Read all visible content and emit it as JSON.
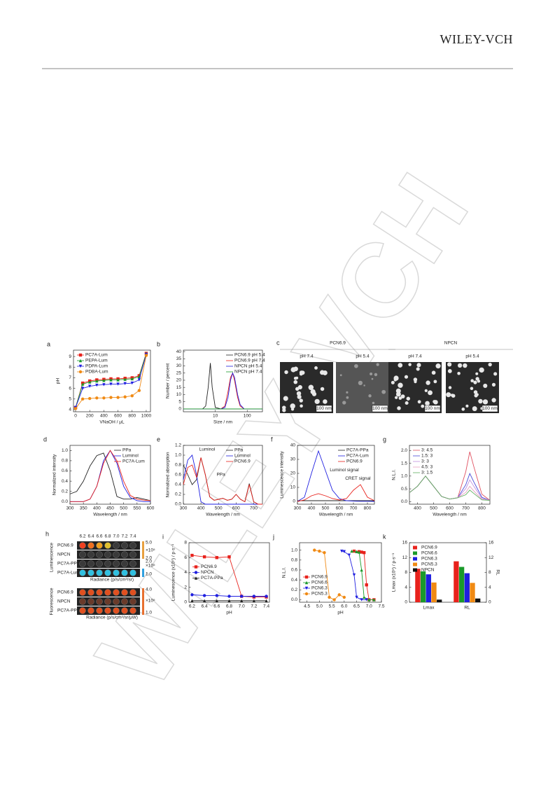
{
  "header": {
    "publisher": "WILEY-VCH"
  },
  "watermark": "WILEY-VCH",
  "micrographs": {
    "label": "c",
    "groups": [
      "PCN6.9",
      "NPCN"
    ],
    "conditions": [
      "pH 7.4",
      "pH 5.4",
      "pH 7.4",
      "pH 5.4"
    ],
    "scale_bars": [
      "100 nm",
      "100 nm",
      "100 nm",
      "100 nm"
    ]
  },
  "imaging": {
    "label": "h",
    "columns": [
      "6.2",
      "6.4",
      "6.6",
      "6.8",
      "7.0",
      "7.2",
      "7.4"
    ],
    "sections": [
      "Luminescence",
      "Fluorescence"
    ],
    "lum_rows": [
      "PCN6.9",
      "NPCN",
      "PC7A-PPa",
      "PC7A-Lum"
    ],
    "fl_rows": [
      "PCN6.9",
      "NPCN",
      "PC7A-PPa"
    ],
    "lum_scales": [
      "5.0",
      "×10⁵",
      "2.0",
      "2.0",
      "×10⁵",
      "1.0"
    ],
    "fl_scale": [
      "4.0",
      "×10⁵",
      "1.0"
    ],
    "lum_radiance": "Radiance (p/s/cm²/sr)",
    "fl_radiance": "Radiance (p/s/cm²/sr/μW)"
  },
  "chart_data": [
    {
      "label": "a",
      "type": "line",
      "markers": true,
      "xlabel": "VNaOH / μL",
      "ylabel": "pH",
      "legend": "upper left",
      "x": [
        0,
        100,
        200,
        300,
        400,
        500,
        600,
        700,
        800,
        900,
        1000
      ],
      "xlim": [
        -30,
        1060
      ],
      "xticks": [
        0,
        200,
        400,
        600,
        800,
        1000
      ],
      "ylim": [
        3.8,
        9.6
      ],
      "yticks": [
        4,
        5,
        6,
        7,
        8,
        9
      ],
      "series": [
        {
          "name": "PC7A-Lum",
          "color": "#e8221c",
          "marker": "square",
          "values": [
            4.2,
            6.5,
            6.7,
            6.8,
            6.85,
            6.9,
            6.9,
            6.95,
            7.0,
            7.2,
            9.3
          ]
        },
        {
          "name": "PEPA-Lum",
          "color": "#1a9a2a",
          "marker": "triangle",
          "values": [
            4.2,
            6.4,
            6.6,
            6.7,
            6.75,
            6.8,
            6.8,
            6.85,
            6.9,
            7.1,
            9.3
          ]
        },
        {
          "name": "PDPA-Lum",
          "color": "#1f1fe0",
          "marker": "triangle-down",
          "values": [
            4.2,
            6.0,
            6.2,
            6.3,
            6.35,
            6.4,
            6.4,
            6.45,
            6.5,
            6.8,
            9.2
          ]
        },
        {
          "name": "PDBA-Lum",
          "color": "#f08a14",
          "marker": "circle",
          "values": [
            4.1,
            5.0,
            5.05,
            5.1,
            5.1,
            5.15,
            5.15,
            5.2,
            5.3,
            5.8,
            9.1
          ]
        }
      ]
    },
    {
      "label": "b",
      "type": "line",
      "xscale": "log",
      "xlabel": "Size / nm",
      "ylabel": "Number / percent",
      "legend": "upper right",
      "x": [
        1,
        4,
        5,
        6,
        7,
        8,
        10,
        15,
        20,
        25,
        30,
        35,
        40,
        50,
        60,
        80,
        100,
        300
      ],
      "xlim": [
        1,
        300
      ],
      "xticks": [
        10,
        100
      ],
      "ylim": [
        -2,
        41
      ],
      "yticks": [
        0,
        5,
        10,
        15,
        20,
        25,
        30,
        35,
        40
      ],
      "series": [
        {
          "name": "PCN6.9 pH 5.4",
          "color": "#222222",
          "values": [
            0,
            0,
            2,
            15,
            32,
            15,
            1,
            0,
            0,
            0,
            0,
            0,
            0,
            0,
            0,
            0,
            0,
            0
          ]
        },
        {
          "name": "PCN6.9 pH 7.4",
          "color": "#e8221c",
          "values": [
            0,
            0,
            0,
            0,
            0,
            0,
            0,
            0,
            2,
            12,
            22,
            25,
            20,
            8,
            2,
            0,
            0,
            0
          ]
        },
        {
          "name": "NPCN pH 5.4",
          "color": "#1f1fe0",
          "values": [
            0,
            0,
            0,
            0,
            0,
            0,
            0,
            0,
            1,
            8,
            20,
            25,
            22,
            10,
            3,
            0,
            0,
            0
          ]
        },
        {
          "name": "NPCN pH 7.4",
          "color": "#1a9a2a",
          "values": [
            0,
            0,
            0,
            0,
            0,
            0,
            0,
            0,
            0,
            0,
            0,
            0,
            0,
            0,
            0,
            0,
            0,
            0
          ]
        }
      ]
    },
    {
      "label": "d",
      "type": "line",
      "xlabel": "Wavelength / nm",
      "ylabel": "Normalized intensity",
      "legend": "upper right",
      "x": [
        300,
        325,
        350,
        375,
        400,
        425,
        450,
        475,
        500,
        525,
        550,
        575,
        600
      ],
      "xlim": [
        300,
        600
      ],
      "xticks": [
        300,
        350,
        400,
        450,
        500,
        550,
        600
      ],
      "ylim": [
        -0.05,
        1.1
      ],
      "yticks": [
        {
          "value": 0,
          "label": "0.0"
        },
        0.2,
        0.4,
        0.6,
        0.8,
        {
          "value": 1,
          "label": "1.0"
        }
      ],
      "series": [
        {
          "name": "PPa",
          "color": "#222222",
          "values": [
            0.15,
            0.2,
            0.4,
            0.7,
            0.9,
            0.95,
            0.6,
            0.1,
            0.05,
            0.05,
            0.08,
            0.05,
            0.02
          ]
        },
        {
          "name": "Luminol",
          "color": "#1f1fe0",
          "values": [
            0,
            0,
            0,
            0.05,
            0.3,
            0.8,
            1.0,
            0.75,
            0.3,
            0.08,
            0.02,
            0,
            0
          ]
        },
        {
          "name": "PC7A-Lum",
          "color": "#e8221c",
          "values": [
            0,
            0,
            0,
            0.05,
            0.3,
            0.75,
            1.0,
            0.8,
            0.4,
            0.12,
            0.05,
            0.03,
            0.02
          ]
        }
      ]
    },
    {
      "label": "e",
      "type": "line",
      "xlabel": "Wavelength / nm",
      "ylabel": "Normalized absorption",
      "legend": "upper right",
      "annotations": [
        "Luminol",
        "PPa"
      ],
      "x": [
        300,
        325,
        350,
        375,
        400,
        425,
        450,
        475,
        500,
        525,
        550,
        575,
        600,
        625,
        650,
        675,
        700,
        725,
        750
      ],
      "xlim": [
        300,
        750
      ],
      "xticks": [
        300,
        400,
        500,
        600,
        700
      ],
      "ylim": [
        0,
        1.2
      ],
      "yticks": [
        {
          "value": 0,
          "label": "0.0"
        },
        0.2,
        0.4,
        0.6,
        0.8,
        {
          "value": 1,
          "label": "1.0"
        },
        1.2
      ],
      "series": [
        {
          "name": "PPa",
          "color": "#222222",
          "values": [
            0.8,
            0.6,
            0.4,
            0.5,
            0.95,
            0.6,
            0.15,
            0.08,
            0.1,
            0.12,
            0.08,
            0.1,
            0.2,
            0.1,
            0.05,
            0.42,
            0.05,
            0,
            0
          ]
        },
        {
          "name": "Luminol",
          "color": "#1f1fe0",
          "values": [
            0.5,
            0.9,
            1.0,
            0.6,
            0.05,
            0,
            0,
            0,
            0,
            0,
            0,
            0,
            0,
            0,
            0,
            0,
            0,
            0,
            0
          ]
        },
        {
          "name": "PCN6.9",
          "color": "#e8221c",
          "values": [
            0.4,
            0.75,
            0.8,
            0.55,
            0.95,
            0.6,
            0.15,
            0.08,
            0.1,
            0.12,
            0.08,
            0.1,
            0.2,
            0.1,
            0.05,
            0.4,
            0.05,
            0,
            0
          ]
        }
      ]
    },
    {
      "label": "f",
      "type": "line",
      "xlabel": "Wavelength / nm",
      "ylabel": "Luminescence intensity",
      "legend": "upper right",
      "annotations": [
        "Luminol signal",
        "CRET signal"
      ],
      "x": [
        300,
        350,
        400,
        450,
        500,
        550,
        600,
        650,
        700,
        750,
        800,
        850
      ],
      "xlim": [
        300,
        850
      ],
      "xticks": [
        300,
        400,
        500,
        600,
        700,
        800
      ],
      "ylim": [
        -2,
        40
      ],
      "yticks": [
        0,
        10,
        20,
        30,
        40
      ],
      "series": [
        {
          "name": "PC7A-PPa",
          "color": "#222222",
          "values": [
            0.5,
            0.5,
            0.5,
            0.5,
            0.5,
            0.5,
            0.5,
            0.5,
            0.5,
            0.5,
            0.5,
            0.5
          ]
        },
        {
          "name": "PC7A-Lum",
          "color": "#1f1fe0",
          "values": [
            0,
            3,
            20,
            36,
            22,
            8,
            2,
            0.5,
            0.2,
            0.1,
            0.1,
            0
          ]
        },
        {
          "name": "PCN6.9",
          "color": "#e8221c",
          "values": [
            0,
            1,
            4,
            5.5,
            4,
            2,
            1,
            2,
            8,
            12,
            3,
            0.5
          ]
        }
      ]
    },
    {
      "label": "g",
      "type": "line",
      "xlabel": "Wavelength / nm",
      "ylabel": "N.L.I.",
      "legend": "upper left",
      "x": [
        350,
        400,
        450,
        500,
        550,
        600,
        650,
        700,
        725,
        750,
        800,
        850
      ],
      "xlim": [
        350,
        850
      ],
      "xticks": [
        400,
        500,
        600,
        700,
        800
      ],
      "ylim": [
        -0.1,
        2.2
      ],
      "yticks": [
        {
          "value": 0,
          "label": "0.0"
        },
        0.5,
        {
          "value": 1,
          "label": "1.0"
        },
        1.5,
        {
          "value": 2,
          "label": "2.0"
        }
      ],
      "series": [
        {
          "name": "3: 4.5",
          "color": "#e05060",
          "values": [
            0.35,
            0.6,
            1.0,
            0.6,
            0.2,
            0.1,
            0.15,
            1.17,
            1.95,
            1.37,
            0.29,
            0.05
          ]
        },
        {
          "name": "1.5: 3",
          "color": "#4a4ad8",
          "values": [
            0.35,
            0.6,
            1.0,
            0.6,
            0.2,
            0.1,
            0.15,
            0.66,
            1.1,
            0.77,
            0.17,
            0.05
          ]
        },
        {
          "name": "3: 3",
          "color": "#c090e0",
          "values": [
            0.35,
            0.6,
            1.0,
            0.6,
            0.2,
            0.1,
            0.15,
            0.51,
            0.85,
            0.6,
            0.13,
            0.05
          ]
        },
        {
          "name": "4.5: 3",
          "color": "#e8a0c0",
          "values": [
            0.35,
            0.6,
            1.0,
            0.6,
            0.2,
            0.1,
            0.15,
            0.36,
            0.6,
            0.42,
            0.09,
            0.05
          ]
        },
        {
          "name": "3: 1.5",
          "color": "#60b060",
          "values": [
            0.35,
            0.6,
            1.0,
            0.6,
            0.2,
            0.1,
            0.15,
            0.27,
            0.45,
            0.32,
            0.07,
            0.05
          ]
        }
      ]
    },
    {
      "label": "i",
      "type": "line",
      "markers": true,
      "xlabel": "pH",
      "ylabel": "Luminescence (x10⁵) / p·s⁻¹",
      "legend": "center left",
      "x": [
        6.2,
        6.4,
        6.6,
        6.8,
        7.0,
        7.2,
        7.4
      ],
      "xlim": [
        6.15,
        7.45
      ],
      "xticks": [
        6.2,
        6.4,
        6.6,
        6.8,
        {
          "value": 7,
          "label": "7.0"
        },
        7.2,
        7.4
      ],
      "ylim": [
        0,
        8
      ],
      "yticks": [
        0,
        2,
        4,
        6,
        8
      ],
      "series": [
        {
          "name": "PCN6.9",
          "color": "#e8221c",
          "marker": "square",
          "values": [
            6.3,
            6.1,
            6.0,
            6.1,
            0.8,
            0.7,
            0.7
          ]
        },
        {
          "name": "NPCN",
          "color": "#1f1fe0",
          "marker": "circle",
          "values": [
            1.0,
            0.9,
            0.9,
            0.8,
            0.8,
            0.8,
            0.8
          ]
        },
        {
          "name": "PC7A-PPa",
          "color": "#222222",
          "marker": "triangle",
          "values": [
            0.2,
            0.2,
            0.2,
            0.2,
            0.2,
            0.2,
            0.2
          ]
        }
      ]
    },
    {
      "label": "j",
      "type": "line",
      "markers": true,
      "xlabel": "pH",
      "ylabel": "N.L.I.",
      "legend": "lower left",
      "xlim": [
        4.2,
        7.5
      ],
      "xticks": [
        4.5,
        {
          "value": 5,
          "label": "5.0"
        },
        5.5,
        {
          "value": 6,
          "label": "6.0"
        },
        6.5,
        {
          "value": 7,
          "label": "7.0"
        },
        7.5
      ],
      "ylim": [
        -0.05,
        1.15
      ],
      "yticks": [
        {
          "value": 0,
          "label": "0.0"
        },
        0.2,
        0.4,
        0.6,
        0.8,
        {
          "value": 1,
          "label": "1.0"
        }
      ],
      "series": [
        {
          "name": "PCN6.9",
          "color": "#e8221c",
          "marker": "square",
          "x": [
            6.4,
            6.6,
            6.7,
            6.8,
            6.9,
            7.0,
            7.2
          ],
          "values": [
            0.98,
            0.97,
            0.96,
            0.95,
            0.3,
            0,
            0
          ]
        },
        {
          "name": "PCN6.6",
          "color": "#1a9a2a",
          "marker": "triangle",
          "x": [
            6.3,
            6.5,
            6.6,
            6.7,
            6.8,
            7.0,
            7.2
          ],
          "values": [
            0.98,
            0.97,
            0.96,
            0.6,
            0.05,
            0,
            0
          ]
        },
        {
          "name": "PCN6.3",
          "color": "#1f1fe0",
          "marker": "triangle-down",
          "x": [
            5.9,
            6.0,
            6.2,
            6.4,
            6.5,
            6.7,
            6.9
          ],
          "values": [
            0.98,
            0.97,
            0.9,
            0.5,
            0.05,
            0,
            0
          ]
        },
        {
          "name": "PCN5.3",
          "color": "#f08a14",
          "marker": "circle",
          "x": [
            4.8,
            5.0,
            5.2,
            5.4,
            5.6,
            5.8,
            6.0
          ],
          "values": [
            1.0,
            0.98,
            0.95,
            0.05,
            0,
            0.1,
            0.05
          ]
        }
      ]
    },
    {
      "label": "k",
      "type": "bar",
      "ylabel": "Lmax (x10⁵) / p·s⁻¹",
      "y2label": "RL",
      "legend": "upper left",
      "categories": [
        "Lmax",
        "RL"
      ],
      "category_axes": [
        "y",
        "y2"
      ],
      "ylim": [
        0,
        16
      ],
      "yticks": [
        0,
        4,
        8,
        12,
        16
      ],
      "y2lim": [
        0,
        16
      ],
      "y2ticks": [
        0,
        4,
        8,
        12,
        16
      ],
      "series": [
        {
          "name": "PCN6.9",
          "color": "#e8221c",
          "values": [
            9,
            11
          ]
        },
        {
          "name": "PCN6.6",
          "color": "#1a9a2a",
          "values": [
            8.3,
            9.5
          ]
        },
        {
          "name": "PCN6.3",
          "color": "#1f1fe0",
          "values": [
            7.5,
            7.8
          ]
        },
        {
          "name": "PCN5.3",
          "color": "#f08a14",
          "values": [
            5.3,
            5.2
          ]
        },
        {
          "name": "NPCN",
          "color": "#111111",
          "values": [
            0.7,
            1.0
          ]
        }
      ]
    }
  ]
}
